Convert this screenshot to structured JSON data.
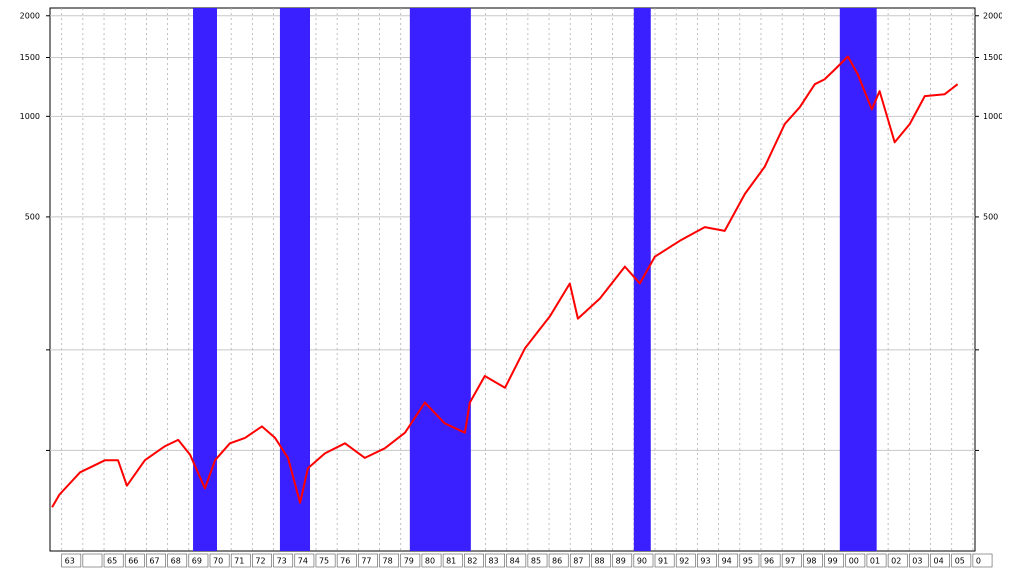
{
  "chart_data": {
    "type": "line",
    "log_scale": true,
    "grid": true,
    "color": "#ff0000",
    "shade_color": "#3a1fff",
    "shaded_regions": [
      [
        1969.2,
        1970.33
      ],
      [
        1973.3,
        1974.72
      ],
      [
        1979.43,
        1982.31
      ],
      [
        1990.0,
        1990.8
      ],
      [
        1999.72,
        2001.46
      ]
    ],
    "x": [
      1962.55,
      1962.9,
      1963.87,
      1965.05,
      1965.66,
      1966.08,
      1966.93,
      1967.88,
      1968.5,
      1969.06,
      1969.76,
      1970.24,
      1970.94,
      1971.65,
      1972.45,
      1973.07,
      1973.68,
      1974.25,
      1974.62,
      1975.42,
      1976.37,
      1977.31,
      1978.25,
      1979.2,
      1980.14,
      1981.08,
      1982.03,
      1982.26,
      1982.97,
      1983.92,
      1984.86,
      1986.04,
      1986.98,
      1987.36,
      1988.4,
      1989.58,
      1990.28,
      1990.99,
      1992.17,
      1993.35,
      1994.29,
      1995.24,
      1996.18,
      1997.12,
      1997.83,
      1998.54,
      1999.0,
      1999.48,
      2000.1,
      2000.57,
      2001.23,
      2001.6,
      2002.31,
      2003.02,
      2003.73,
      2004.67,
      2005.28
    ],
    "values": [
      67.6,
      73.8,
      86,
      93.5,
      93.5,
      78.4,
      93.5,
      103,
      107.5,
      97,
      77,
      93.5,
      105,
      109,
      118,
      109,
      95,
      69.7,
      88.4,
      98,
      105,
      95,
      101.5,
      113,
      139,
      120.5,
      113,
      139,
      167,
      154,
      202,
      252,
      316,
      248,
      285,
      355,
      316,
      380,
      424,
      466,
      454,
      586,
      707,
      948,
      1064,
      1248,
      1290,
      1380,
      1510,
      1335,
      1050,
      1190,
      836,
      948,
      1150,
      1165,
      1248
    ],
    "xlim": [
      1962.45,
      2006.1
    ],
    "xticks": [
      {
        "value": 1963,
        "label": "63"
      },
      {
        "value": 1964,
        "label": null
      },
      {
        "value": 1965,
        "label": "65"
      },
      {
        "value": 1966,
        "label": "66"
      },
      {
        "value": 1967,
        "label": "67"
      },
      {
        "value": 1968,
        "label": "68"
      },
      {
        "value": 1969,
        "label": "69"
      },
      {
        "value": 1970,
        "label": "70"
      },
      {
        "value": 1971,
        "label": "71"
      },
      {
        "value": 1972,
        "label": "72"
      },
      {
        "value": 1973,
        "label": "73"
      },
      {
        "value": 1974,
        "label": "74"
      },
      {
        "value": 1975,
        "label": "75"
      },
      {
        "value": 1976,
        "label": "76"
      },
      {
        "value": 1977,
        "label": "77"
      },
      {
        "value": 1978,
        "label": "78"
      },
      {
        "value": 1979,
        "label": "79"
      },
      {
        "value": 1980,
        "label": "80"
      },
      {
        "value": 1981,
        "label": "81"
      },
      {
        "value": 1982,
        "label": "82"
      },
      {
        "value": 1983,
        "label": "83"
      },
      {
        "value": 1984,
        "label": "84"
      },
      {
        "value": 1985,
        "label": "85"
      },
      {
        "value": 1986,
        "label": "86"
      },
      {
        "value": 1987,
        "label": "87"
      },
      {
        "value": 1988,
        "label": "88"
      },
      {
        "value": 1989,
        "label": "89"
      },
      {
        "value": 1990,
        "label": "90"
      },
      {
        "value": 1991,
        "label": "91"
      },
      {
        "value": 1992,
        "label": "92"
      },
      {
        "value": 1993,
        "label": "93"
      },
      {
        "value": 1994,
        "label": "94"
      },
      {
        "value": 1995,
        "label": "95"
      },
      {
        "value": 1996,
        "label": "96"
      },
      {
        "value": 1997,
        "label": "97"
      },
      {
        "value": 1998,
        "label": "98"
      },
      {
        "value": 1999,
        "label": "99"
      },
      {
        "value": 2000,
        "label": "00"
      },
      {
        "value": 2001,
        "label": "01"
      },
      {
        "value": 2002,
        "label": "02"
      },
      {
        "value": 2003,
        "label": "03"
      },
      {
        "value": 2004,
        "label": "04"
      },
      {
        "value": 2005,
        "label": "05"
      },
      {
        "value": 2006,
        "label": "0"
      }
    ],
    "ylim": [
      50,
      2110
    ],
    "yticks": [
      {
        "value": 100,
        "label": null
      },
      {
        "value": 200,
        "label": null
      },
      500,
      1000,
      1500,
      2000
    ]
  }
}
